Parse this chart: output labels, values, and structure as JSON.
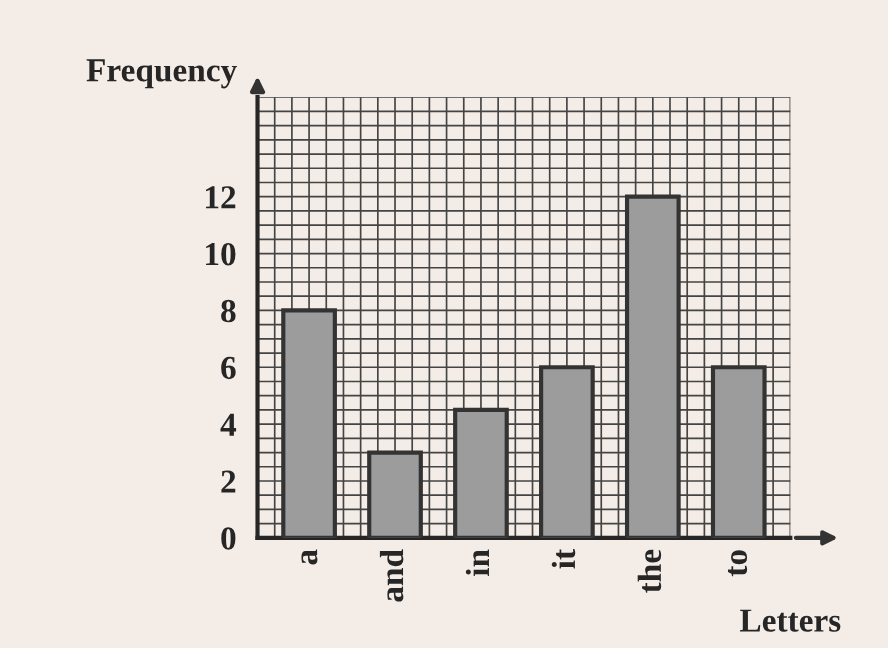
{
  "chart_data": {
    "type": "bar",
    "xlabel": "Letters",
    "ylabel": "Frequency",
    "categories": [
      "a",
      "and",
      "in",
      "it",
      "the",
      "to"
    ],
    "series": [
      {
        "color": "#9c9c9c",
        "values": [
          8,
          3,
          4.5,
          6,
          12,
          6
        ]
      }
    ],
    "ylim": [
      0,
      15.5
    ],
    "yticks": [
      0,
      2,
      4,
      6,
      8,
      10,
      12
    ],
    "grid": true
  }
}
